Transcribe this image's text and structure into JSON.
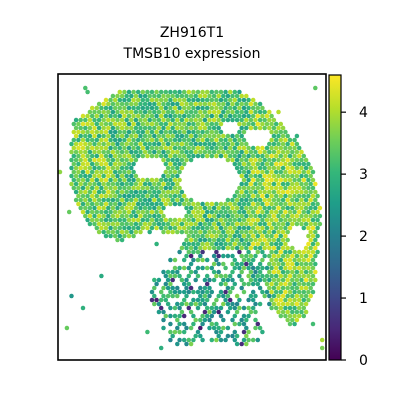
{
  "chart_data": {
    "type": "heatmap",
    "title_lines": [
      "ZH916T1",
      "TMSB10 expression"
    ],
    "xlabel": "",
    "ylabel": "",
    "colorbar": {
      "colormap": "viridis",
      "range": [
        0,
        4.6
      ],
      "ticks": [
        0,
        1,
        2,
        3,
        4
      ],
      "tick_labels": [
        "0",
        "1",
        "2",
        "3",
        "4"
      ]
    },
    "grid": false,
    "legend": "colorbar-right",
    "spot_layout": "hexagonal",
    "tissue_regions": [
      {
        "name": "upper-main",
        "typical_value": 3.4
      },
      {
        "name": "left-edge",
        "typical_value": 3.6
      },
      {
        "name": "right-band",
        "typical_value": 3.7
      },
      {
        "name": "lower-cluster",
        "typical_value": 2.9
      }
    ],
    "low_outlier_value": 0.3
  },
  "colors": {
    "viridis_stops": [
      "#440154",
      "#482878",
      "#3e4989",
      "#31688e",
      "#26828e",
      "#1f9e89",
      "#35b779",
      "#6ece58",
      "#b5de2b",
      "#fde725"
    ]
  }
}
